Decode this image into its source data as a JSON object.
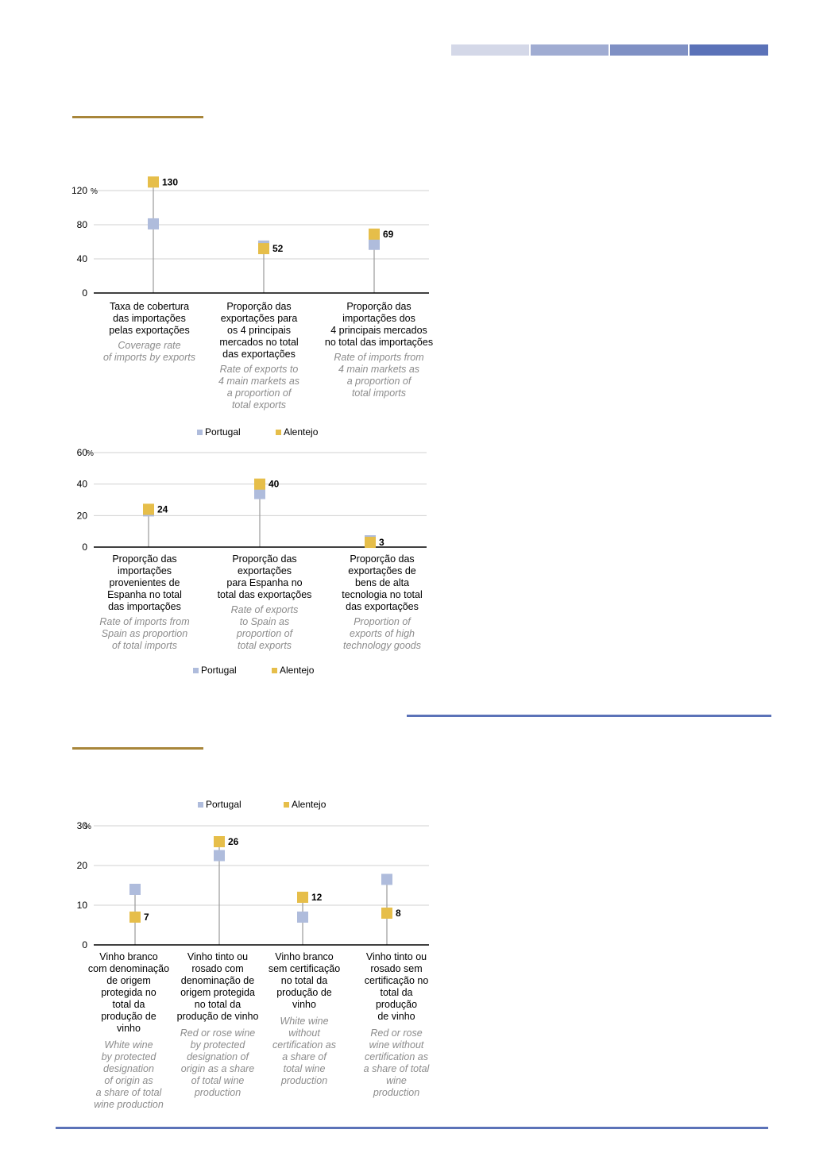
{
  "colors": {
    "portugal": "#afbcdc",
    "alentejo": "#e6be4a",
    "grid": "#d0d0d0",
    "axis": "#000000",
    "stem": "#9a9a9a",
    "header_bars": [
      "#d4d8e8",
      "#a0acd2",
      "#7f90c4",
      "#5b72b8"
    ],
    "gold_rule": "#a8863a",
    "blue_rule": "#5b72b8"
  },
  "chart_data": [
    {
      "type": "scatter",
      "unit": "%",
      "ylim": [
        0,
        120
      ],
      "yticks": [
        "0",
        "40",
        "80",
        "120"
      ],
      "grid": true,
      "legend": {
        "position": "bottom",
        "entries": [
          "Portugal",
          "Alentejo"
        ]
      },
      "categories": [
        {
          "pt": [
            "Taxa de cobertura",
            "das importações",
            "pelas exportações"
          ],
          "en": [
            "Coverage rate",
            "of imports by exports"
          ]
        },
        {
          "pt": [
            "Proporção das",
            "exportações para",
            "os 4 principais",
            "mercados no total",
            "das exportações"
          ],
          "en": [
            "Rate of exports to",
            "4 main markets as",
            "a proportion of",
            "total exports"
          ]
        },
        {
          "pt": [
            "Proporção das",
            "importações dos",
            "4 principais mercados",
            "no total das importações"
          ],
          "en": [
            "Rate of imports from",
            "4 main markets as",
            "a proportion of",
            "total imports"
          ]
        }
      ],
      "series": [
        {
          "name": "Portugal",
          "values": [
            81,
            55,
            57
          ]
        },
        {
          "name": "Alentejo",
          "values": [
            130,
            52,
            69
          ]
        }
      ],
      "data_labels": [
        "130",
        "52",
        "69"
      ]
    },
    {
      "type": "scatter",
      "unit": "%",
      "ylim": [
        0,
        60
      ],
      "yticks": [
        "0",
        "20",
        "40",
        "60"
      ],
      "grid": true,
      "legend": {
        "position": "bottom",
        "entries": [
          "Portugal",
          "Alentejo"
        ]
      },
      "categories": [
        {
          "pt": [
            "Proporção das",
            "importações",
            "provenientes de",
            "Espanha no total",
            "das importações"
          ],
          "en": [
            "Rate of imports from",
            "Spain as proportion",
            "of total imports"
          ]
        },
        {
          "pt": [
            "Proporção das",
            "exportações",
            "para Espanha no",
            "total das exportações"
          ],
          "en": [
            "Rate of exports",
            "to Spain as",
            "proportion of",
            "total exports"
          ]
        },
        {
          "pt": [
            "Proporção das",
            "exportações de",
            "bens de alta",
            "tecnologia no total",
            "das exportações"
          ],
          "en": [
            "Proportion of",
            "exports of high",
            "technology goods"
          ]
        }
      ],
      "series": [
        {
          "name": "Portugal",
          "values": [
            23,
            34,
            4
          ]
        },
        {
          "name": "Alentejo",
          "values": [
            24,
            40,
            3
          ]
        }
      ],
      "data_labels": [
        "24",
        "40",
        "3"
      ]
    },
    {
      "type": "scatter",
      "unit": "%",
      "ylim": [
        0,
        30
      ],
      "yticks": [
        "0",
        "10",
        "20",
        "30"
      ],
      "grid": true,
      "legend": {
        "position": "top",
        "entries": [
          "Portugal",
          "Alentejo"
        ]
      },
      "categories": [
        {
          "pt": [
            "Vinho branco",
            "com denominação",
            "de origem",
            "protegida no",
            "total da",
            "produção de",
            "vinho"
          ],
          "en": [
            "White wine",
            "by protected",
            "designation",
            "of origin as",
            "a share of total",
            "wine production"
          ]
        },
        {
          "pt": [
            "Vinho tinto ou",
            "rosado com",
            "denominação de",
            "origem protegida",
            "no total da",
            "produção de vinho"
          ],
          "en": [
            "Red or rose wine",
            "by protected",
            "designation of",
            "origin as a share",
            "of total wine",
            "production"
          ]
        },
        {
          "pt": [
            "Vinho branco",
            "sem certificação",
            "no total da",
            "produção de",
            "vinho"
          ],
          "en": [
            "White wine",
            "without",
            "certification as",
            "a share of",
            "total wine",
            "production"
          ]
        },
        {
          "pt": [
            "Vinho tinto ou",
            "rosado sem",
            "certificação no",
            "total da",
            "produção",
            "de vinho"
          ],
          "en": [
            "Red or rose",
            "wine without",
            "certification as",
            "a share of total",
            "wine",
            "production"
          ]
        }
      ],
      "series": [
        {
          "name": "Portugal",
          "values": [
            14,
            22.5,
            7,
            16.5
          ]
        },
        {
          "name": "Alentejo",
          "values": [
            7,
            26,
            12,
            8
          ]
        }
      ],
      "data_labels": [
        "7",
        "26",
        "12",
        "8"
      ]
    }
  ]
}
